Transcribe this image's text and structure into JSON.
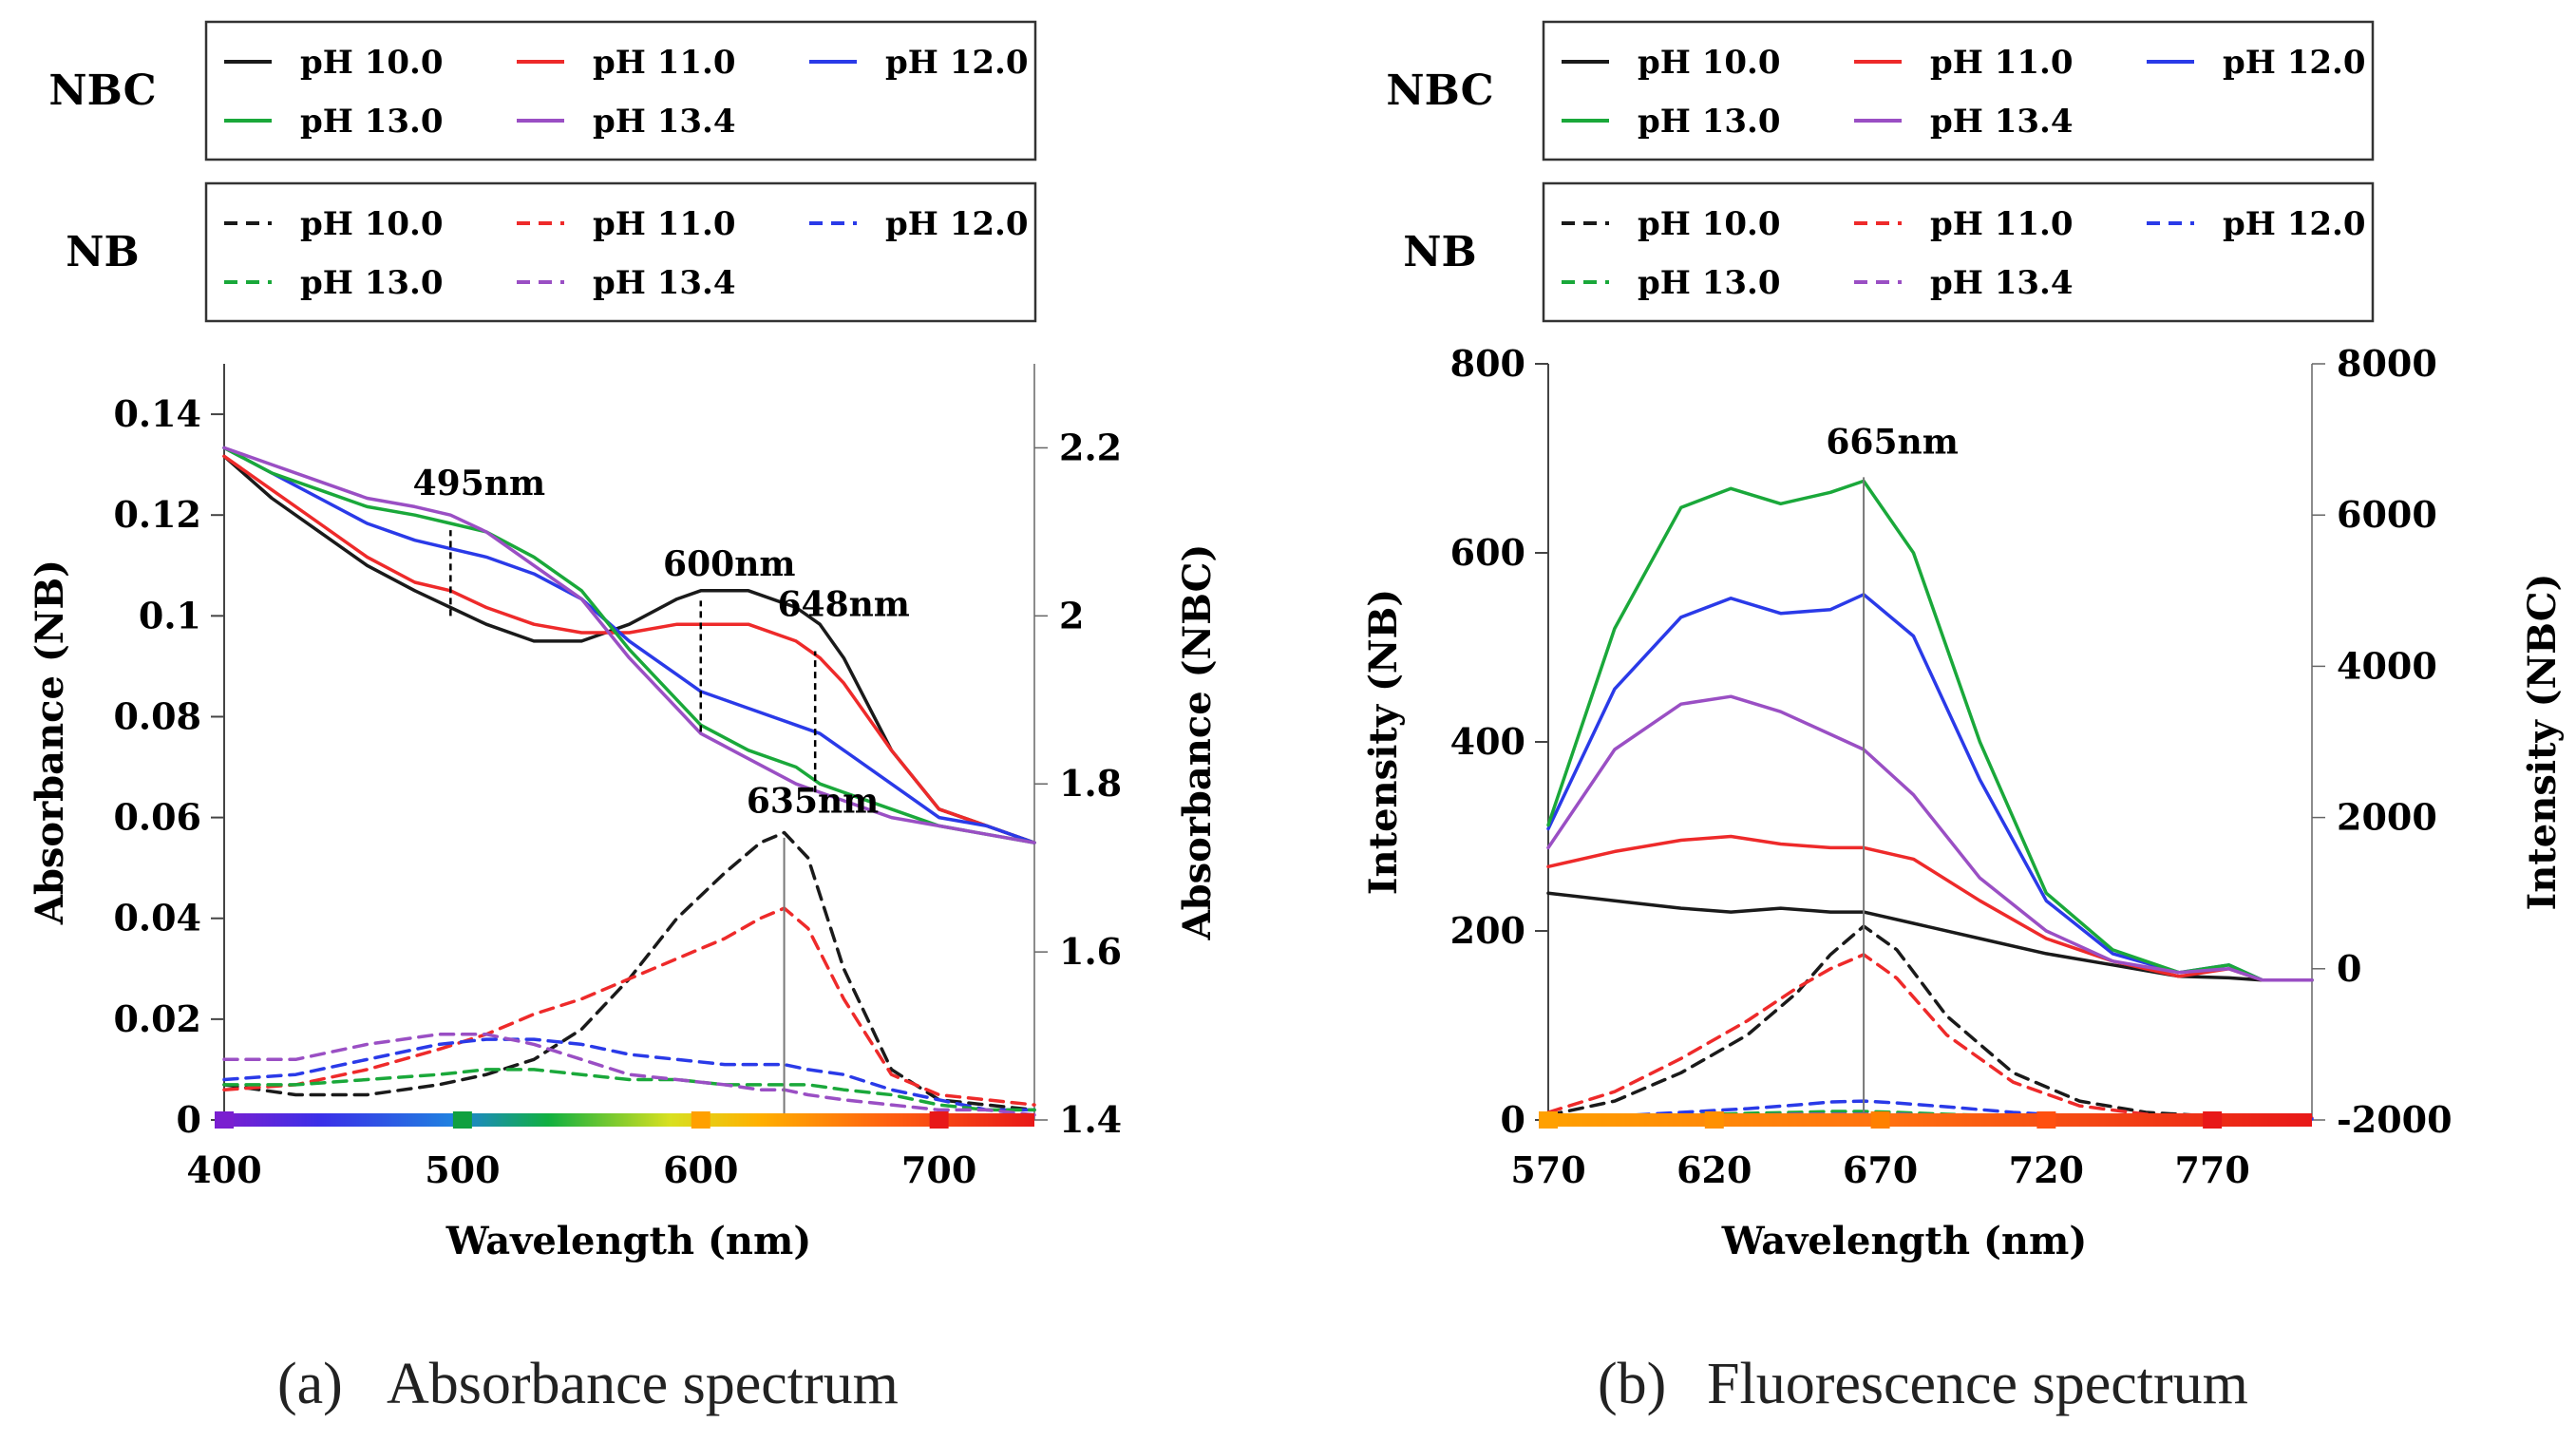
{
  "colors": {
    "ph10": "#1a1a1a",
    "ph11": "#ee2a2a",
    "ph12": "#2a3ae8",
    "ph13": "#1aa83a",
    "ph134": "#9a4fc4"
  },
  "chart_data": [
    {
      "id": "a",
      "type": "line",
      "caption_label": "(a)",
      "caption_text": "Absorbance spectrum",
      "xlabel": "Wavelength (nm)",
      "ylabel": "Absorbance (NB)",
      "y2label": "Absorbance (NBC)",
      "xlim": [
        400,
        740
      ],
      "ylim": [
        0,
        0.15
      ],
      "y2lim": [
        1.4,
        2.3
      ],
      "xticks": [
        "400",
        "500",
        "600",
        "700"
      ],
      "yticks": [
        "0",
        "0.02",
        "0.04",
        "0.06",
        "0.08",
        "0.1",
        "0.12",
        "0.14"
      ],
      "y2ticks": [
        "1.4",
        "1.6",
        "1.8",
        "2",
        "2.2"
      ],
      "legend_groups": [
        {
          "label": "NBC",
          "style": "solid",
          "entries": [
            "pH 10.0",
            "pH 11.0",
            "pH 12.0",
            "pH 13.0",
            "pH 13.4"
          ]
        },
        {
          "label": "NB",
          "style": "dashed",
          "entries": [
            "pH 10.0",
            "pH 11.0",
            "pH 12.0",
            "pH 13.0",
            "pH 13.4"
          ]
        }
      ],
      "annotations": [
        {
          "text": "495nm",
          "x": 495,
          "y": 0.124,
          "marker": "dashed",
          "y_from": 0.1,
          "y_to": 0.117
        },
        {
          "text": "600nm",
          "x": 600,
          "y": 0.108,
          "marker": "dashed",
          "y_from": 0.077,
          "y_to": 0.103
        },
        {
          "text": "648nm",
          "x": 648,
          "y": 0.1,
          "marker": "dashed",
          "y_from": 0.065,
          "y_to": 0.093
        },
        {
          "text": "635nm",
          "x": 635,
          "y": 0.061,
          "marker": "solid",
          "y_from": 0,
          "y_to": 0.056
        }
      ],
      "series": [
        {
          "name": "pH 10.0",
          "group": "NBC",
          "axis": "right",
          "dash": false,
          "color_key": "ph10",
          "x": [
            400,
            420,
            440,
            460,
            480,
            495,
            510,
            530,
            550,
            570,
            590,
            600,
            620,
            640,
            650,
            660,
            680,
            700,
            720,
            740
          ],
          "y": [
            2.19,
            2.14,
            2.1,
            2.06,
            2.03,
            2.01,
            1.99,
            1.97,
            1.97,
            1.99,
            2.02,
            2.03,
            2.03,
            2.01,
            1.99,
            1.95,
            1.84,
            1.77,
            1.75,
            1.73
          ]
        },
        {
          "name": "pH 11.0",
          "group": "NBC",
          "axis": "right",
          "dash": false,
          "color_key": "ph11",
          "x": [
            400,
            420,
            440,
            460,
            480,
            495,
            510,
            530,
            550,
            570,
            590,
            600,
            620,
            640,
            650,
            660,
            680,
            700,
            720,
            740
          ],
          "y": [
            2.19,
            2.15,
            2.11,
            2.07,
            2.04,
            2.03,
            2.01,
            1.99,
            1.98,
            1.98,
            1.99,
            1.99,
            1.99,
            1.97,
            1.95,
            1.92,
            1.84,
            1.77,
            1.75,
            1.73
          ]
        },
        {
          "name": "pH 12.0",
          "group": "NBC",
          "axis": "right",
          "dash": false,
          "color_key": "ph12",
          "x": [
            400,
            420,
            440,
            460,
            480,
            495,
            510,
            530,
            550,
            570,
            590,
            600,
            620,
            640,
            650,
            660,
            680,
            700,
            720,
            740
          ],
          "y": [
            2.2,
            2.17,
            2.14,
            2.11,
            2.09,
            2.08,
            2.07,
            2.05,
            2.02,
            1.97,
            1.93,
            1.91,
            1.89,
            1.87,
            1.86,
            1.84,
            1.8,
            1.76,
            1.75,
            1.73
          ]
        },
        {
          "name": "pH 13.0",
          "group": "NBC",
          "axis": "right",
          "dash": false,
          "color_key": "ph13",
          "x": [
            400,
            420,
            440,
            460,
            480,
            495,
            510,
            530,
            550,
            570,
            590,
            600,
            620,
            640,
            650,
            660,
            680,
            700,
            720,
            740
          ],
          "y": [
            2.2,
            2.17,
            2.15,
            2.13,
            2.12,
            2.11,
            2.1,
            2.07,
            2.03,
            1.96,
            1.9,
            1.87,
            1.84,
            1.82,
            1.8,
            1.79,
            1.77,
            1.75,
            1.74,
            1.73
          ]
        },
        {
          "name": "pH 13.4",
          "group": "NBC",
          "axis": "right",
          "dash": false,
          "color_key": "ph134",
          "x": [
            400,
            420,
            440,
            460,
            480,
            495,
            510,
            530,
            550,
            570,
            590,
            600,
            620,
            640,
            650,
            660,
            680,
            700,
            720,
            740
          ],
          "y": [
            2.2,
            2.18,
            2.16,
            2.14,
            2.13,
            2.12,
            2.1,
            2.06,
            2.02,
            1.95,
            1.89,
            1.86,
            1.83,
            1.8,
            1.79,
            1.78,
            1.76,
            1.75,
            1.74,
            1.73
          ]
        },
        {
          "name": "pH 10.0",
          "group": "NB",
          "axis": "left",
          "dash": true,
          "color_key": "ph10",
          "x": [
            400,
            430,
            460,
            490,
            510,
            530,
            550,
            570,
            590,
            610,
            625,
            635,
            645,
            660,
            680,
            700,
            720,
            740
          ],
          "y": [
            0.007,
            0.005,
            0.005,
            0.007,
            0.009,
            0.012,
            0.018,
            0.028,
            0.04,
            0.049,
            0.055,
            0.057,
            0.052,
            0.03,
            0.01,
            0.004,
            0.003,
            0.002
          ]
        },
        {
          "name": "pH 11.0",
          "group": "NB",
          "axis": "left",
          "dash": true,
          "color_key": "ph11",
          "x": [
            400,
            430,
            460,
            490,
            510,
            530,
            550,
            570,
            590,
            610,
            625,
            635,
            645,
            660,
            680,
            700,
            720,
            740
          ],
          "y": [
            0.006,
            0.007,
            0.01,
            0.014,
            0.017,
            0.021,
            0.024,
            0.028,
            0.032,
            0.036,
            0.04,
            0.042,
            0.038,
            0.024,
            0.009,
            0.005,
            0.004,
            0.003
          ]
        },
        {
          "name": "pH 12.0",
          "group": "NB",
          "axis": "left",
          "dash": true,
          "color_key": "ph12",
          "x": [
            400,
            430,
            460,
            490,
            510,
            530,
            550,
            570,
            590,
            610,
            625,
            635,
            645,
            660,
            680,
            700,
            720,
            740
          ],
          "y": [
            0.008,
            0.009,
            0.012,
            0.015,
            0.016,
            0.016,
            0.015,
            0.013,
            0.012,
            0.011,
            0.011,
            0.011,
            0.01,
            0.009,
            0.006,
            0.004,
            0.002,
            0.002
          ]
        },
        {
          "name": "pH 13.0",
          "group": "NB",
          "axis": "left",
          "dash": true,
          "color_key": "ph13",
          "x": [
            400,
            430,
            460,
            490,
            510,
            530,
            550,
            570,
            590,
            610,
            625,
            635,
            645,
            660,
            680,
            700,
            720,
            740
          ],
          "y": [
            0.007,
            0.007,
            0.008,
            0.009,
            0.01,
            0.01,
            0.009,
            0.008,
            0.008,
            0.007,
            0.007,
            0.007,
            0.007,
            0.006,
            0.005,
            0.003,
            0.002,
            0.002
          ]
        },
        {
          "name": "pH 13.4",
          "group": "NB",
          "axis": "left",
          "dash": true,
          "color_key": "ph134",
          "x": [
            400,
            430,
            460,
            490,
            510,
            530,
            550,
            570,
            590,
            610,
            625,
            635,
            645,
            660,
            680,
            700,
            720,
            740
          ],
          "y": [
            0.012,
            0.012,
            0.015,
            0.017,
            0.017,
            0.015,
            0.012,
            0.009,
            0.008,
            0.007,
            0.006,
            0.006,
            0.005,
            0.004,
            0.003,
            0.002,
            0.002,
            0.001
          ]
        }
      ]
    },
    {
      "id": "b",
      "type": "line",
      "caption_label": "(b)",
      "caption_text": "Fluorescence spectrum",
      "xlabel": "Wavelength (nm)",
      "ylabel": "Intensity (NB)",
      "y2label": "Intensity (NBC)",
      "xlim": [
        570,
        800
      ],
      "ylim": [
        0,
        800
      ],
      "y2lim": [
        -2000,
        8000
      ],
      "xticks": [
        "570",
        "620",
        "670",
        "720",
        "770"
      ],
      "yticks": [
        "0",
        "200",
        "400",
        "600",
        "800"
      ],
      "y2ticks": [
        "-2000",
        "0",
        "2000",
        "4000",
        "6000",
        "8000"
      ],
      "legend_groups": [
        {
          "label": "NBC",
          "style": "solid",
          "entries": [
            "pH 10.0",
            "pH 11.0",
            "pH 12.0",
            "pH 13.0",
            "pH 13.4"
          ]
        },
        {
          "label": "NB",
          "style": "dashed",
          "entries": [
            "pH 10.0",
            "pH 11.0",
            "pH 12.0",
            "pH 13.0",
            "pH 13.4"
          ]
        }
      ],
      "annotations": [
        {
          "text": "665nm",
          "x": 665,
          "y": 705,
          "marker": "solid",
          "y_from": 0,
          "y_to": 680
        }
      ],
      "series": [
        {
          "name": "pH 10.0",
          "group": "NBC",
          "axis": "right",
          "dash": false,
          "color_key": "ph10",
          "x": [
            570,
            590,
            610,
            625,
            640,
            655,
            665,
            680,
            700,
            720,
            740,
            760,
            775,
            785,
            800
          ],
          "y": [
            1000,
            900,
            800,
            750,
            800,
            750,
            750,
            600,
            400,
            200,
            50,
            -100,
            -120,
            -150,
            -150
          ]
        },
        {
          "name": "pH 11.0",
          "group": "NBC",
          "axis": "right",
          "dash": false,
          "color_key": "ph11",
          "x": [
            570,
            590,
            610,
            625,
            640,
            655,
            665,
            680,
            700,
            720,
            740,
            760,
            775,
            785,
            800
          ],
          "y": [
            1350,
            1550,
            1700,
            1750,
            1650,
            1600,
            1600,
            1450,
            900,
            400,
            100,
            -100,
            0,
            -150,
            -150
          ]
        },
        {
          "name": "pH 12.0",
          "group": "NBC",
          "axis": "right",
          "dash": false,
          "color_key": "ph12",
          "x": [
            570,
            590,
            610,
            625,
            640,
            655,
            665,
            680,
            700,
            720,
            740,
            760,
            775,
            785,
            800
          ],
          "y": [
            1850,
            3700,
            4650,
            4900,
            4700,
            4750,
            4950,
            4400,
            2500,
            900,
            200,
            -50,
            50,
            -150,
            -150
          ]
        },
        {
          "name": "pH 13.0",
          "group": "NBC",
          "axis": "right",
          "dash": false,
          "color_key": "ph13",
          "x": [
            570,
            590,
            610,
            625,
            640,
            655,
            665,
            680,
            700,
            720,
            740,
            760,
            775,
            785,
            800
          ],
          "y": [
            1900,
            4500,
            6100,
            6350,
            6150,
            6300,
            6450,
            5500,
            3000,
            1000,
            250,
            -50,
            50,
            -150,
            -150
          ]
        },
        {
          "name": "pH 13.4",
          "group": "NBC",
          "axis": "right",
          "dash": false,
          "color_key": "ph134",
          "x": [
            570,
            590,
            610,
            625,
            640,
            655,
            665,
            680,
            700,
            720,
            740,
            760,
            775,
            785,
            800
          ],
          "y": [
            1600,
            2900,
            3500,
            3600,
            3400,
            3100,
            2900,
            2300,
            1200,
            500,
            100,
            -50,
            0,
            -150,
            -150
          ]
        },
        {
          "name": "pH 10.0",
          "group": "NB",
          "axis": "left",
          "dash": true,
          "color_key": "ph10",
          "x": [
            570,
            590,
            610,
            630,
            645,
            655,
            665,
            675,
            690,
            710,
            730,
            750,
            770,
            800
          ],
          "y": [
            5,
            20,
            50,
            90,
            135,
            175,
            205,
            180,
            110,
            50,
            20,
            8,
            4,
            2
          ]
        },
        {
          "name": "pH 11.0",
          "group": "NB",
          "axis": "left",
          "dash": true,
          "color_key": "ph11",
          "x": [
            570,
            590,
            610,
            630,
            645,
            655,
            665,
            675,
            690,
            710,
            730,
            750,
            770,
            800
          ],
          "y": [
            8,
            30,
            65,
            105,
            140,
            160,
            175,
            150,
            90,
            40,
            15,
            6,
            3,
            2
          ]
        },
        {
          "name": "pH 12.0",
          "group": "NB",
          "axis": "left",
          "dash": true,
          "color_key": "ph12",
          "x": [
            570,
            590,
            610,
            630,
            645,
            655,
            665,
            675,
            690,
            710,
            730,
            750,
            770,
            800
          ],
          "y": [
            2,
            4,
            8,
            12,
            16,
            19,
            20,
            18,
            14,
            8,
            4,
            2,
            1,
            1
          ]
        },
        {
          "name": "pH 13.0",
          "group": "NB",
          "axis": "left",
          "dash": true,
          "color_key": "ph13",
          "x": [
            570,
            590,
            610,
            630,
            645,
            655,
            665,
            675,
            690,
            710,
            730,
            750,
            770,
            800
          ],
          "y": [
            2,
            3,
            5,
            7,
            8,
            9,
            9,
            8,
            6,
            4,
            2,
            1,
            1,
            1
          ]
        },
        {
          "name": "pH 13.4",
          "group": "NB",
          "axis": "left",
          "dash": true,
          "color_key": "ph134",
          "x": [
            570,
            590,
            610,
            630,
            645,
            655,
            665,
            675,
            690,
            710,
            730,
            750,
            770,
            800
          ],
          "y": [
            2,
            3,
            4,
            5,
            6,
            6,
            6,
            6,
            5,
            3,
            2,
            1,
            1,
            1
          ]
        }
      ]
    }
  ]
}
